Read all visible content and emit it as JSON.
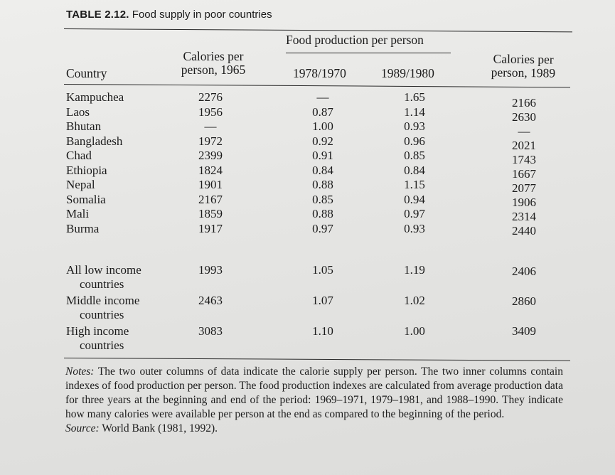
{
  "caption": {
    "label": "TABLE 2.12.",
    "title": "Food supply in poor countries"
  },
  "headers": {
    "country": "Country",
    "cal1965": "Calories per\nperson, 1965",
    "group": "Food production per person",
    "fp1": "1978/1970",
    "fp2": "1989/1980",
    "cal1989": "Calories per\nperson, 1989"
  },
  "rows": [
    {
      "country": "Kampuchea",
      "cal1965": "2276",
      "fp1": "—",
      "fp2": "1.65",
      "cal1989": "2166"
    },
    {
      "country": "Laos",
      "cal1965": "1956",
      "fp1": "0.87",
      "fp2": "1.14",
      "cal1989": "2630"
    },
    {
      "country": "Bhutan",
      "cal1965": "—",
      "fp1": "1.00",
      "fp2": "0.93",
      "cal1989": "—"
    },
    {
      "country": "Bangladesh",
      "cal1965": "1972",
      "fp1": "0.92",
      "fp2": "0.96",
      "cal1989": "2021"
    },
    {
      "country": "Chad",
      "cal1965": "2399",
      "fp1": "0.91",
      "fp2": "0.85",
      "cal1989": "1743"
    },
    {
      "country": "Ethiopia",
      "cal1965": "1824",
      "fp1": "0.84",
      "fp2": "0.84",
      "cal1989": "1667"
    },
    {
      "country": "Nepal",
      "cal1965": "1901",
      "fp1": "0.88",
      "fp2": "1.15",
      "cal1989": "2077"
    },
    {
      "country": "Somalia",
      "cal1965": "2167",
      "fp1": "0.85",
      "fp2": "0.94",
      "cal1989": "1906"
    },
    {
      "country": "Mali",
      "cal1965": "1859",
      "fp1": "0.88",
      "fp2": "0.97",
      "cal1989": "2314"
    },
    {
      "country": "Burma",
      "cal1965": "1917",
      "fp1": "0.97",
      "fp2": "0.93",
      "cal1989": "2440"
    }
  ],
  "groups": [
    {
      "line1": "All low income",
      "line2": "countries",
      "cal1965": "1993",
      "fp1": "1.05",
      "fp2": "1.19",
      "cal1989": "2406"
    },
    {
      "line1": "Middle income",
      "line2": "countries",
      "cal1965": "2463",
      "fp1": "1.07",
      "fp2": "1.02",
      "cal1989": "2860"
    },
    {
      "line1": "High income",
      "line2": "countries",
      "cal1965": "3083",
      "fp1": "1.10",
      "fp2": "1.00",
      "cal1989": "3409"
    }
  ],
  "notes": {
    "notes_label": "Notes:",
    "notes_text": "The two outer columns of data indicate the calorie supply per person. The two inner columns contain indexes of food production per person. The food production indexes are calculated from average production data for three years at the beginning and end of the period: 1969–1971, 1979–1981, and 1988–1990. They indicate how many calories were available per person at the end as compared to the beginning of the period.",
    "source_label": "Source:",
    "source_text": "World Bank (1981, 1992)."
  }
}
